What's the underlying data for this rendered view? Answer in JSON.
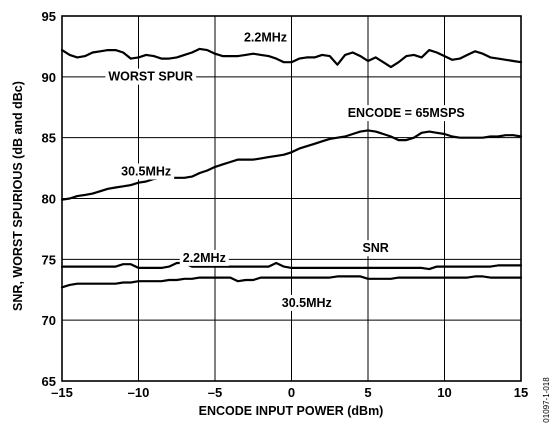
{
  "chart_data": {
    "type": "line",
    "xlabel": "ENCODE INPUT POWER (dBm)",
    "ylabel": "SNR, WORST SPURIOUS (dB and dBc)",
    "xlim": [
      -15,
      15
    ],
    "ylim": [
      65,
      95
    ],
    "xticks": [
      -15,
      -10,
      -5,
      0,
      5,
      10,
      15
    ],
    "yticks": [
      65,
      70,
      75,
      80,
      85,
      90,
      95
    ],
    "xtick_labels": [
      "–15",
      "–10",
      "–5",
      "0",
      "5",
      "10",
      "15"
    ],
    "ytick_labels": [
      "65",
      "70",
      "75",
      "80",
      "85",
      "90",
      "95"
    ],
    "grid": true,
    "legend": "none",
    "line_color": "#000000",
    "figure_id": "01097-1-018",
    "annotations": [
      {
        "text": "2.2MHz",
        "x": -1.7,
        "y": 93.3
      },
      {
        "text": "WORST SPUR",
        "x": -9.2,
        "y": 90.1
      },
      {
        "text": "ENCODE = 65MSPS",
        "x": 7.5,
        "y": 87.1
      },
      {
        "text": "30.5MHz",
        "x": -9.5,
        "y": 82.3
      },
      {
        "text": "SNR",
        "x": 5.5,
        "y": 76.0
      },
      {
        "text": "2.2MHz",
        "x": -5.7,
        "y": 75.2
      },
      {
        "text": "30.5MHz",
        "x": 1.0,
        "y": 71.5
      }
    ],
    "series": [
      {
        "x": [
          -15,
          -14.5,
          -14,
          -13.5,
          -13,
          -12.5,
          -12,
          -11.5,
          -11,
          -10.5,
          -10,
          -9.5,
          -9,
          -8.5,
          -8,
          -7.5,
          -7,
          -6.5,
          -6,
          -5.5,
          -5,
          -4.5,
          -4,
          -3.5,
          -3,
          -2.5,
          -2,
          -1.5,
          -1,
          -0.5,
          0,
          0.5,
          1,
          1.5,
          2,
          2.5,
          3,
          3.5,
          4,
          4.5,
          5,
          5.5,
          6,
          6.5,
          7,
          7.5,
          8,
          8.5,
          9,
          9.5,
          10,
          10.5,
          11,
          11.5,
          12,
          12.5,
          13,
          13.5,
          14,
          14.5,
          15
        ],
        "values": [
          92.2,
          91.8,
          91.6,
          91.7,
          92.0,
          92.1,
          92.2,
          92.2,
          92.0,
          91.5,
          91.6,
          91.8,
          91.7,
          91.5,
          91.5,
          91.6,
          91.8,
          92.0,
          92.3,
          92.2,
          91.9,
          91.7,
          91.7,
          91.7,
          91.8,
          91.9,
          91.8,
          91.7,
          91.5,
          91.2,
          91.2,
          91.5,
          91.6,
          91.6,
          91.8,
          91.7,
          91.0,
          91.8,
          92.0,
          91.7,
          91.3,
          91.6,
          91.2,
          90.8,
          91.2,
          91.7,
          91.8,
          91.6,
          92.2,
          92.0,
          91.7,
          91.4,
          91.5,
          91.8,
          92.1,
          91.9,
          91.6,
          91.5,
          91.4,
          91.3,
          91.2
        ]
      },
      {
        "x": [
          -15,
          -14.5,
          -14,
          -13.5,
          -13,
          -12.5,
          -12,
          -11.5,
          -11,
          -10.5,
          -10,
          -9.5,
          -9,
          -8.5,
          -8,
          -7.5,
          -7,
          -6.5,
          -6,
          -5.5,
          -5,
          -4.5,
          -4,
          -3.5,
          -3,
          -2.5,
          -2,
          -1.5,
          -1,
          -0.5,
          0,
          0.5,
          1,
          1.5,
          2,
          2.5,
          3,
          3.5,
          4,
          4.5,
          5,
          5.5,
          6,
          6.5,
          7,
          7.5,
          8,
          8.5,
          9,
          9.5,
          10,
          10.5,
          11,
          11.5,
          12,
          12.5,
          13,
          13.5,
          14,
          14.5,
          15
        ],
        "values": [
          79.9,
          80.0,
          80.2,
          80.3,
          80.4,
          80.6,
          80.8,
          80.9,
          81.0,
          81.1,
          81.3,
          81.4,
          81.6,
          81.7,
          81.7,
          81.7,
          81.7,
          81.8,
          82.1,
          82.3,
          82.6,
          82.8,
          83.0,
          83.2,
          83.2,
          83.2,
          83.3,
          83.4,
          83.5,
          83.6,
          83.8,
          84.1,
          84.3,
          84.5,
          84.7,
          84.9,
          85.0,
          85.1,
          85.3,
          85.5,
          85.6,
          85.5,
          85.3,
          85.1,
          84.8,
          84.8,
          85.0,
          85.4,
          85.5,
          85.4,
          85.3,
          85.1,
          85.0,
          85.0,
          85.0,
          85.0,
          85.1,
          85.1,
          85.2,
          85.2,
          85.1
        ]
      },
      {
        "x": [
          -15,
          -14.5,
          -14,
          -13.5,
          -13,
          -12.5,
          -12,
          -11.5,
          -11,
          -10.5,
          -10,
          -9.5,
          -9,
          -8.5,
          -8,
          -7.5,
          -7,
          -6.5,
          -6,
          -5.5,
          -5,
          -4.5,
          -4,
          -3.5,
          -3,
          -2.5,
          -2,
          -1.5,
          -1,
          -0.5,
          0,
          0.5,
          1,
          1.5,
          2,
          2.5,
          3,
          3.5,
          4,
          4.5,
          5,
          5.5,
          6,
          6.5,
          7,
          7.5,
          8,
          8.5,
          9,
          9.5,
          10,
          10.5,
          11,
          11.5,
          12,
          12.5,
          13,
          13.5,
          14,
          14.5,
          15
        ],
        "values": [
          74.4,
          74.4,
          74.4,
          74.4,
          74.4,
          74.4,
          74.4,
          74.4,
          74.6,
          74.6,
          74.3,
          74.3,
          74.3,
          74.3,
          74.4,
          74.7,
          74.7,
          74.4,
          74.4,
          74.4,
          74.4,
          74.4,
          74.4,
          74.4,
          74.4,
          74.4,
          74.4,
          74.4,
          74.7,
          74.4,
          74.3,
          74.3,
          74.3,
          74.3,
          74.3,
          74.3,
          74.3,
          74.3,
          74.3,
          74.3,
          74.3,
          74.3,
          74.3,
          74.3,
          74.3,
          74.3,
          74.3,
          74.3,
          74.2,
          74.4,
          74.4,
          74.4,
          74.4,
          74.4,
          74.4,
          74.4,
          74.4,
          74.5,
          74.5,
          74.5,
          74.5
        ]
      },
      {
        "x": [
          -15,
          -14.5,
          -14,
          -13.5,
          -13,
          -12.5,
          -12,
          -11.5,
          -11,
          -10.5,
          -10,
          -9.5,
          -9,
          -8.5,
          -8,
          -7.5,
          -7,
          -6.5,
          -6,
          -5.5,
          -5,
          -4.5,
          -4,
          -3.5,
          -3,
          -2.5,
          -2,
          -1.5,
          -1,
          -0.5,
          0,
          0.5,
          1,
          1.5,
          2,
          2.5,
          3,
          3.5,
          4,
          4.5,
          5,
          5.5,
          6,
          6.5,
          7,
          7.5,
          8,
          8.5,
          9,
          9.5,
          10,
          10.5,
          11,
          11.5,
          12,
          12.5,
          13,
          13.5,
          14,
          14.5,
          15
        ],
        "values": [
          72.7,
          72.9,
          73.0,
          73.0,
          73.0,
          73.0,
          73.0,
          73.0,
          73.1,
          73.1,
          73.2,
          73.2,
          73.2,
          73.2,
          73.3,
          73.3,
          73.4,
          73.4,
          73.5,
          73.5,
          73.5,
          73.5,
          73.5,
          73.2,
          73.3,
          73.3,
          73.5,
          73.5,
          73.5,
          73.5,
          73.5,
          73.5,
          73.5,
          73.5,
          73.5,
          73.5,
          73.6,
          73.6,
          73.6,
          73.6,
          73.4,
          73.4,
          73.4,
          73.4,
          73.5,
          73.5,
          73.5,
          73.5,
          73.5,
          73.5,
          73.5,
          73.5,
          73.5,
          73.5,
          73.6,
          73.6,
          73.5,
          73.5,
          73.5,
          73.5,
          73.5
        ]
      }
    ]
  }
}
